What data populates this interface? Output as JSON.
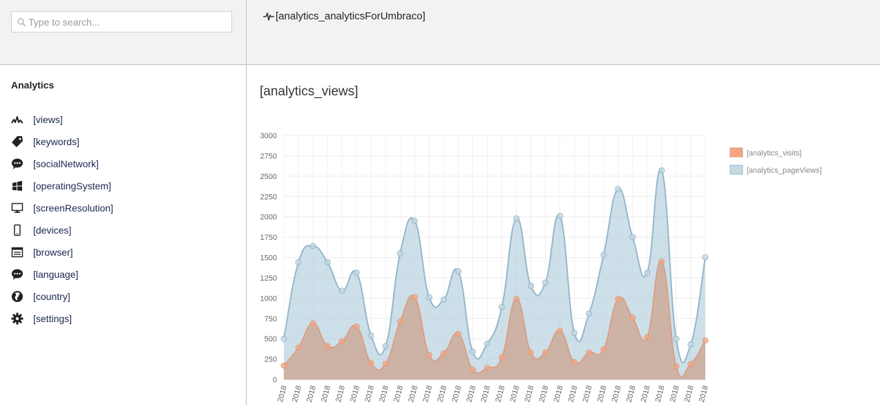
{
  "search": {
    "placeholder": "Type to search..."
  },
  "header": {
    "title": "[analytics_analyticsForUmbraco]"
  },
  "sidebar": {
    "heading": "Analytics",
    "items": [
      {
        "label": "[views]",
        "icon": "chart-line-icon"
      },
      {
        "label": "[keywords]",
        "icon": "tag-icon"
      },
      {
        "label": "[socialNetwork]",
        "icon": "chat-bubble-icon"
      },
      {
        "label": "[operatingSystem]",
        "icon": "windows-icon"
      },
      {
        "label": "[screenResolution]",
        "icon": "monitor-icon"
      },
      {
        "label": "[devices]",
        "icon": "phone-icon"
      },
      {
        "label": "[browser]",
        "icon": "browser-window-icon"
      },
      {
        "label": "[language]",
        "icon": "chat-bubble-icon"
      },
      {
        "label": "[country]",
        "icon": "globe-icon"
      },
      {
        "label": "[settings]",
        "icon": "gear-icon"
      }
    ]
  },
  "main": {
    "section_title": "[analytics_views]"
  },
  "chart_data": {
    "type": "area",
    "title": "",
    "xlabel": "",
    "ylabel": "",
    "ylim": [
      0,
      3000
    ],
    "yticks": [
      0,
      250,
      500,
      750,
      1000,
      1250,
      1500,
      1750,
      2000,
      2250,
      2500,
      2750,
      3000
    ],
    "grid": true,
    "legend_position": "right",
    "categories": [
      "2018",
      "2018",
      "2018",
      "2018",
      "2018",
      "2018",
      "2018",
      "2018",
      "2018",
      "2018",
      "2018",
      "2018",
      "2018",
      "2018",
      "2018",
      "2018",
      "2018",
      "2018",
      "2018",
      "2018",
      "2018",
      "2018",
      "2018",
      "2018",
      "2018",
      "2018",
      "2018",
      "2018",
      "2018",
      "2018"
    ],
    "series": [
      {
        "name": "[analytics_visits]",
        "color": "#f4a582",
        "fill": "rgba(205,150,120,0.6)",
        "line": "#d9a084",
        "values": [
          170,
          390,
          690,
          410,
          470,
          650,
          200,
          190,
          710,
          1010,
          300,
          320,
          560,
          120,
          140,
          270,
          990,
          330,
          330,
          600,
          210,
          330,
          370,
          990,
          760,
          520,
          1450,
          160,
          190,
          480
        ]
      },
      {
        "name": "[analytics_pageViews]",
        "color": "#c5d9e3",
        "fill": "rgba(172,202,218,0.6)",
        "line": "#95b7c9",
        "values": [
          500,
          1440,
          1640,
          1440,
          1090,
          1310,
          540,
          410,
          1550,
          1950,
          1010,
          980,
          1330,
          340,
          440,
          890,
          1980,
          1150,
          1190,
          2010,
          570,
          810,
          1530,
          2340,
          1750,
          1310,
          2570,
          500,
          430,
          1500
        ]
      }
    ]
  }
}
